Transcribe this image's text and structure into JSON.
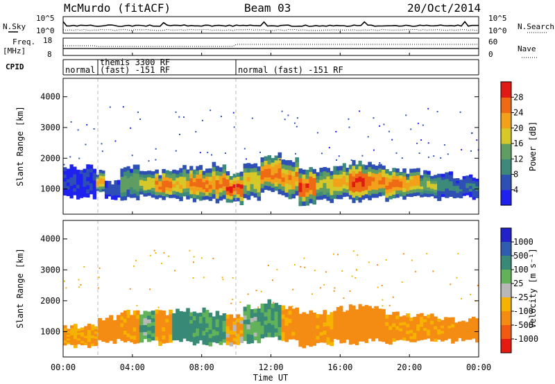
{
  "header": {
    "station": "McMurdo (fitACF)",
    "beam": "Beam 03",
    "date": "20/Oct/2014"
  },
  "side_labels": {
    "nsky": "N.Sky",
    "nsearch": "N.Search",
    "freq_top": "Freq.",
    "freq_unit": "[MHz]",
    "nave": "Nave",
    "cpid": "CPID",
    "exp_1e5_left": "10^5",
    "exp_1e0_left": "10^0",
    "exp_1e5_right": "10^5",
    "exp_1e0_right": "10^0",
    "freq_18": "18",
    "freq_8": "8",
    "nave_60": "60",
    "nave_0": "0"
  },
  "cpid_segments": [
    {
      "label": "normal",
      "start": 0.0
    },
    {
      "label": "themis 3300 RF",
      "start": 2.0
    },
    {
      "label": "(fast) -151 RF",
      "start": 2.0
    },
    {
      "label": "normal (fast) -151 RF",
      "start": 10.0
    }
  ],
  "axes": {
    "xlabel": "Time UT",
    "ylabel": "Slant Range [km]",
    "yticks": [
      "1000",
      "2000",
      "3000",
      "4000"
    ],
    "xticks": [
      "00:00",
      "04:00",
      "08:00",
      "12:00",
      "16:00",
      "20:00",
      "00:00"
    ]
  },
  "colorbars": {
    "power": {
      "label": "Power [dB]",
      "ticks": [
        "4",
        "8",
        "12",
        "16",
        "20",
        "24",
        "28"
      ],
      "colors": [
        "#1f22ee",
        "#2e4fb4",
        "#3d8a7a",
        "#5f9d62",
        "#d6c828",
        "#f2a11a",
        "#ee6a14",
        "#e11b13"
      ]
    },
    "velocity": {
      "label": "Velocity [m s⁻¹]",
      "ticks": [
        "1000",
        "500",
        "100",
        "25",
        "-25",
        "-100",
        "-500",
        "-1000"
      ],
      "colors": [
        "#2222c8",
        "#2f5db0",
        "#388a76",
        "#62b25a",
        "#b8b8b8",
        "#f5b300",
        "#f48c14",
        "#f05a12",
        "#e51a10"
      ]
    }
  },
  "chart_data": [
    {
      "type": "heatmap",
      "name": "power",
      "x_range_hours": [
        0,
        24
      ],
      "y_range_km": [
        180,
        4600
      ],
      "ylabel": "Slant Range [km]",
      "xlabel": "Time UT",
      "bands": [
        {
          "t0": 0.0,
          "t1": 1.9,
          "r0": 760,
          "r1": 1720,
          "v": 4
        },
        {
          "t0": 1.9,
          "t1": 2.4,
          "r0": 950,
          "r1": 1550,
          "v": 22
        },
        {
          "t0": 2.4,
          "t1": 3.3,
          "r0": 700,
          "r1": 1250,
          "v": 6
        },
        {
          "t0": 3.3,
          "t1": 4.4,
          "r0": 720,
          "r1": 1700,
          "v": 14
        },
        {
          "t0": 4.4,
          "t1": 5.3,
          "r0": 800,
          "r1": 1650,
          "v": 18
        },
        {
          "t0": 5.3,
          "t1": 6.3,
          "r0": 680,
          "r1": 1560,
          "v": 26
        },
        {
          "t0": 6.3,
          "t1": 7.3,
          "r0": 700,
          "r1": 1700,
          "v": 20
        },
        {
          "t0": 7.3,
          "t1": 8.4,
          "r0": 650,
          "r1": 1680,
          "v": 26
        },
        {
          "t0": 8.4,
          "t1": 9.4,
          "r0": 620,
          "r1": 1780,
          "v": 24
        },
        {
          "t0": 9.4,
          "t1": 10.4,
          "r0": 560,
          "r1": 1520,
          "v": 29
        },
        {
          "t0": 10.4,
          "t1": 11.4,
          "r0": 700,
          "r1": 1780,
          "v": 20
        },
        {
          "t0": 11.4,
          "t1": 12.6,
          "r0": 920,
          "r1": 2100,
          "v": 26
        },
        {
          "t0": 12.6,
          "t1": 13.6,
          "r0": 760,
          "r1": 1960,
          "v": 24
        },
        {
          "t0": 13.6,
          "t1": 14.6,
          "r0": 480,
          "r1": 1620,
          "v": 28
        },
        {
          "t0": 14.6,
          "t1": 15.6,
          "r0": 620,
          "r1": 1650,
          "v": 18
        },
        {
          "t0": 15.6,
          "t1": 16.5,
          "r0": 700,
          "r1": 1750,
          "v": 22
        },
        {
          "t0": 16.5,
          "t1": 17.6,
          "r0": 620,
          "r1": 1880,
          "v": 29
        },
        {
          "t0": 17.6,
          "t1": 18.6,
          "r0": 720,
          "r1": 1820,
          "v": 24
        },
        {
          "t0": 18.6,
          "t1": 19.6,
          "r0": 680,
          "r1": 1600,
          "v": 26
        },
        {
          "t0": 19.6,
          "t1": 20.6,
          "r0": 720,
          "r1": 1580,
          "v": 22
        },
        {
          "t0": 20.6,
          "t1": 21.6,
          "r0": 760,
          "r1": 1520,
          "v": 16
        },
        {
          "t0": 21.6,
          "t1": 22.5,
          "r0": 700,
          "r1": 1480,
          "v": 10
        },
        {
          "t0": 22.5,
          "t1": 24.0,
          "r0": 740,
          "r1": 1400,
          "v": 8
        }
      ]
    },
    {
      "type": "heatmap",
      "name": "velocity",
      "x_range_hours": [
        0,
        24
      ],
      "y_range_km": [
        180,
        4600
      ],
      "ylabel": "Slant Range [km]",
      "xlabel": "Time UT",
      "bands": [
        {
          "t0": 0.0,
          "t1": 2.0,
          "r0": 560,
          "r1": 1200,
          "v": -110
        },
        {
          "t0": 2.0,
          "t1": 3.3,
          "r0": 700,
          "r1": 1450,
          "v": -200
        },
        {
          "t0": 3.3,
          "t1": 4.4,
          "r0": 650,
          "r1": 1650,
          "v": -120
        },
        {
          "t0": 4.4,
          "t1": 5.3,
          "r0": 720,
          "r1": 1620,
          "v": 80
        },
        {
          "t0": 5.3,
          "t1": 6.3,
          "r0": 640,
          "r1": 1620,
          "v": -150
        },
        {
          "t0": 6.3,
          "t1": 7.3,
          "r0": 700,
          "r1": 1700,
          "v": 200
        },
        {
          "t0": 7.3,
          "t1": 8.4,
          "r0": 650,
          "r1": 1680,
          "v": 150
        },
        {
          "t0": 8.4,
          "t1": 9.4,
          "r0": 620,
          "r1": 1600,
          "v": 120
        },
        {
          "t0": 9.4,
          "t1": 10.4,
          "r0": 560,
          "r1": 1520,
          "v": -80
        },
        {
          "t0": 10.4,
          "t1": 11.4,
          "r0": 700,
          "r1": 1780,
          "v": 90
        },
        {
          "t0": 11.4,
          "t1": 12.6,
          "r0": 800,
          "r1": 1950,
          "v": 120
        },
        {
          "t0": 12.6,
          "t1": 13.6,
          "r0": 760,
          "r1": 1800,
          "v": -140
        },
        {
          "t0": 13.6,
          "t1": 14.6,
          "r0": 500,
          "r1": 1600,
          "v": -180
        },
        {
          "t0": 14.6,
          "t1": 15.6,
          "r0": 620,
          "r1": 1650,
          "v": -120
        },
        {
          "t0": 15.6,
          "t1": 16.5,
          "r0": 700,
          "r1": 1750,
          "v": -260
        },
        {
          "t0": 16.5,
          "t1": 17.6,
          "r0": 620,
          "r1": 1820,
          "v": -220
        },
        {
          "t0": 17.6,
          "t1": 18.6,
          "r0": 720,
          "r1": 1780,
          "v": -300
        },
        {
          "t0": 18.6,
          "t1": 19.6,
          "r0": 680,
          "r1": 1580,
          "v": -150
        },
        {
          "t0": 19.6,
          "t1": 20.6,
          "r0": 720,
          "r1": 1560,
          "v": -130
        },
        {
          "t0": 20.6,
          "t1": 21.6,
          "r0": 740,
          "r1": 1500,
          "v": -110
        },
        {
          "t0": 21.6,
          "t1": 22.6,
          "r0": 700,
          "r1": 1460,
          "v": -140
        },
        {
          "t0": 22.6,
          "t1": 24.0,
          "r0": 740,
          "r1": 1380,
          "v": -200
        }
      ]
    }
  ]
}
